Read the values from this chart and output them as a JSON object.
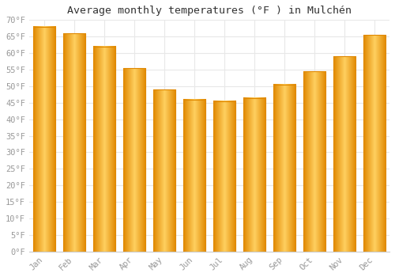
{
  "title": "Average monthly temperatures (°F ) in Mulchén",
  "months": [
    "Jan",
    "Feb",
    "Mar",
    "Apr",
    "May",
    "Jun",
    "Jul",
    "Aug",
    "Sep",
    "Oct",
    "Nov",
    "Dec"
  ],
  "values": [
    68,
    66,
    62,
    55.5,
    49,
    46,
    45.5,
    46.5,
    50.5,
    54.5,
    59,
    65.5
  ],
  "bar_color_main": "#FFA500",
  "bar_color_light": "#FFD060",
  "bar_color_edge": "#E08800",
  "ylim": [
    0,
    70
  ],
  "yticks": [
    0,
    5,
    10,
    15,
    20,
    25,
    30,
    35,
    40,
    45,
    50,
    55,
    60,
    65,
    70
  ],
  "ytick_labels": [
    "0°F",
    "5°F",
    "10°F",
    "15°F",
    "20°F",
    "25°F",
    "30°F",
    "35°F",
    "40°F",
    "45°F",
    "50°F",
    "55°F",
    "60°F",
    "65°F",
    "70°F"
  ],
  "background_color": "#ffffff",
  "grid_color": "#e8e8e8",
  "title_fontsize": 9.5,
  "tick_fontsize": 7.5,
  "tick_color": "#999999"
}
